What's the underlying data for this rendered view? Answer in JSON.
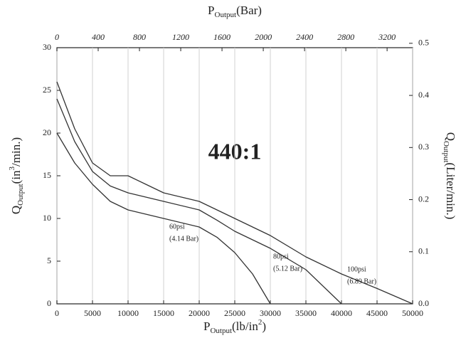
{
  "chart_data": {
    "type": "line",
    "x_label": [
      "P",
      "Output",
      "(lb/in",
      "2",
      ")"
    ],
    "x2_label": [
      "P",
      "Output",
      "(Bar)"
    ],
    "y_label": [
      "Q",
      "Output",
      "(in",
      "3",
      "/min.)"
    ],
    "y2_label": [
      "Q",
      "Output",
      "(Liter/min.)"
    ],
    "annotation": "440:1",
    "xlim": [
      0,
      50000
    ],
    "xticks": [
      0,
      5000,
      10000,
      15000,
      20000,
      25000,
      30000,
      35000,
      40000,
      45000,
      50000
    ],
    "x2lim": [
      0,
      3447.4
    ],
    "x2ticks": [
      0,
      400,
      800,
      1200,
      1600,
      2000,
      2400,
      2800,
      3200
    ],
    "ylim": [
      0,
      30
    ],
    "yticks": [
      0,
      5,
      10,
      15,
      20,
      25,
      30
    ],
    "y2lim": [
      0,
      0.4916
    ],
    "y2ticks": [
      {
        "value": 0,
        "label": "0.0"
      },
      0.1,
      0.2,
      0.3,
      0.4,
      0.5
    ],
    "grid": "x",
    "color": "#333333",
    "series": [
      {
        "name": "60psi",
        "note": "(4.14 Bar)",
        "x": [
          0,
          2500,
          5000,
          7500,
          10000,
          15000,
          20000,
          22500,
          25000,
          27500,
          30000
        ],
        "values": [
          20,
          16.5,
          14,
          12,
          11,
          10,
          9,
          7.8,
          6,
          3.5,
          0
        ]
      },
      {
        "name": "80psi",
        "note": "(5.12 Bar)",
        "x": [
          0,
          2500,
          5000,
          7500,
          10000,
          15000,
          20000,
          22500,
          25000,
          30000,
          35000,
          40000
        ],
        "values": [
          24,
          19,
          15.5,
          13.8,
          13,
          12,
          11,
          9.8,
          8.5,
          6.5,
          4,
          0
        ]
      },
      {
        "name": "100psi",
        "note": "(6.89 Bar)",
        "x": [
          0,
          2500,
          5000,
          7500,
          10000,
          12500,
          15000,
          17500,
          20000,
          22500,
          25000,
          30000,
          35000,
          40000,
          45000,
          50000
        ],
        "values": [
          26,
          20.5,
          16.5,
          15,
          15,
          14,
          13,
          12.5,
          12,
          11,
          10,
          8,
          5.5,
          3.5,
          1.8,
          0
        ]
      }
    ]
  }
}
